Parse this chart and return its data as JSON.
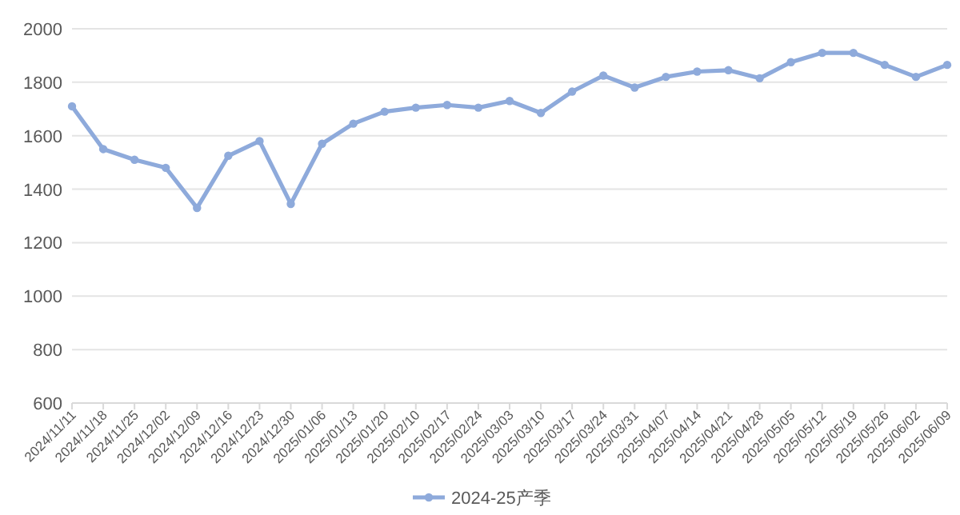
{
  "chart_data": {
    "type": "line",
    "categories": [
      "2024/11/11",
      "2024/11/18",
      "2024/11/25",
      "2024/12/02",
      "2024/12/09",
      "2024/12/16",
      "2024/12/23",
      "2024/12/30",
      "2025/01/06",
      "2025/01/13",
      "2025/01/20",
      "2025/02/10",
      "2025/02/17",
      "2025/02/24",
      "2025/03/03",
      "2025/03/10",
      "2025/03/17",
      "2025/03/24",
      "2025/03/31",
      "2025/04/07",
      "2025/04/14",
      "2025/04/21",
      "2025/04/28",
      "2025/05/05",
      "2025/05/12",
      "2025/05/19",
      "2025/05/26",
      "2025/06/02",
      "2025/06/09"
    ],
    "series": [
      {
        "name": "2024-25产季",
        "color": "#8eaadb",
        "values": [
          1710,
          1550,
          1510,
          1480,
          1330,
          1525,
          1580,
          1345,
          1570,
          1645,
          1690,
          1705,
          1715,
          1705,
          1730,
          1685,
          1765,
          1825,
          1780,
          1820,
          1840,
          1845,
          1815,
          1875,
          1910,
          1910,
          1865,
          1820,
          1865
        ]
      }
    ],
    "ylim": [
      600,
      2000
    ],
    "yticks": [
      600,
      800,
      1000,
      1200,
      1400,
      1600,
      1800,
      2000
    ],
    "grid": "y",
    "legend": "bottom",
    "marker": "circle",
    "line_style": "solid"
  }
}
